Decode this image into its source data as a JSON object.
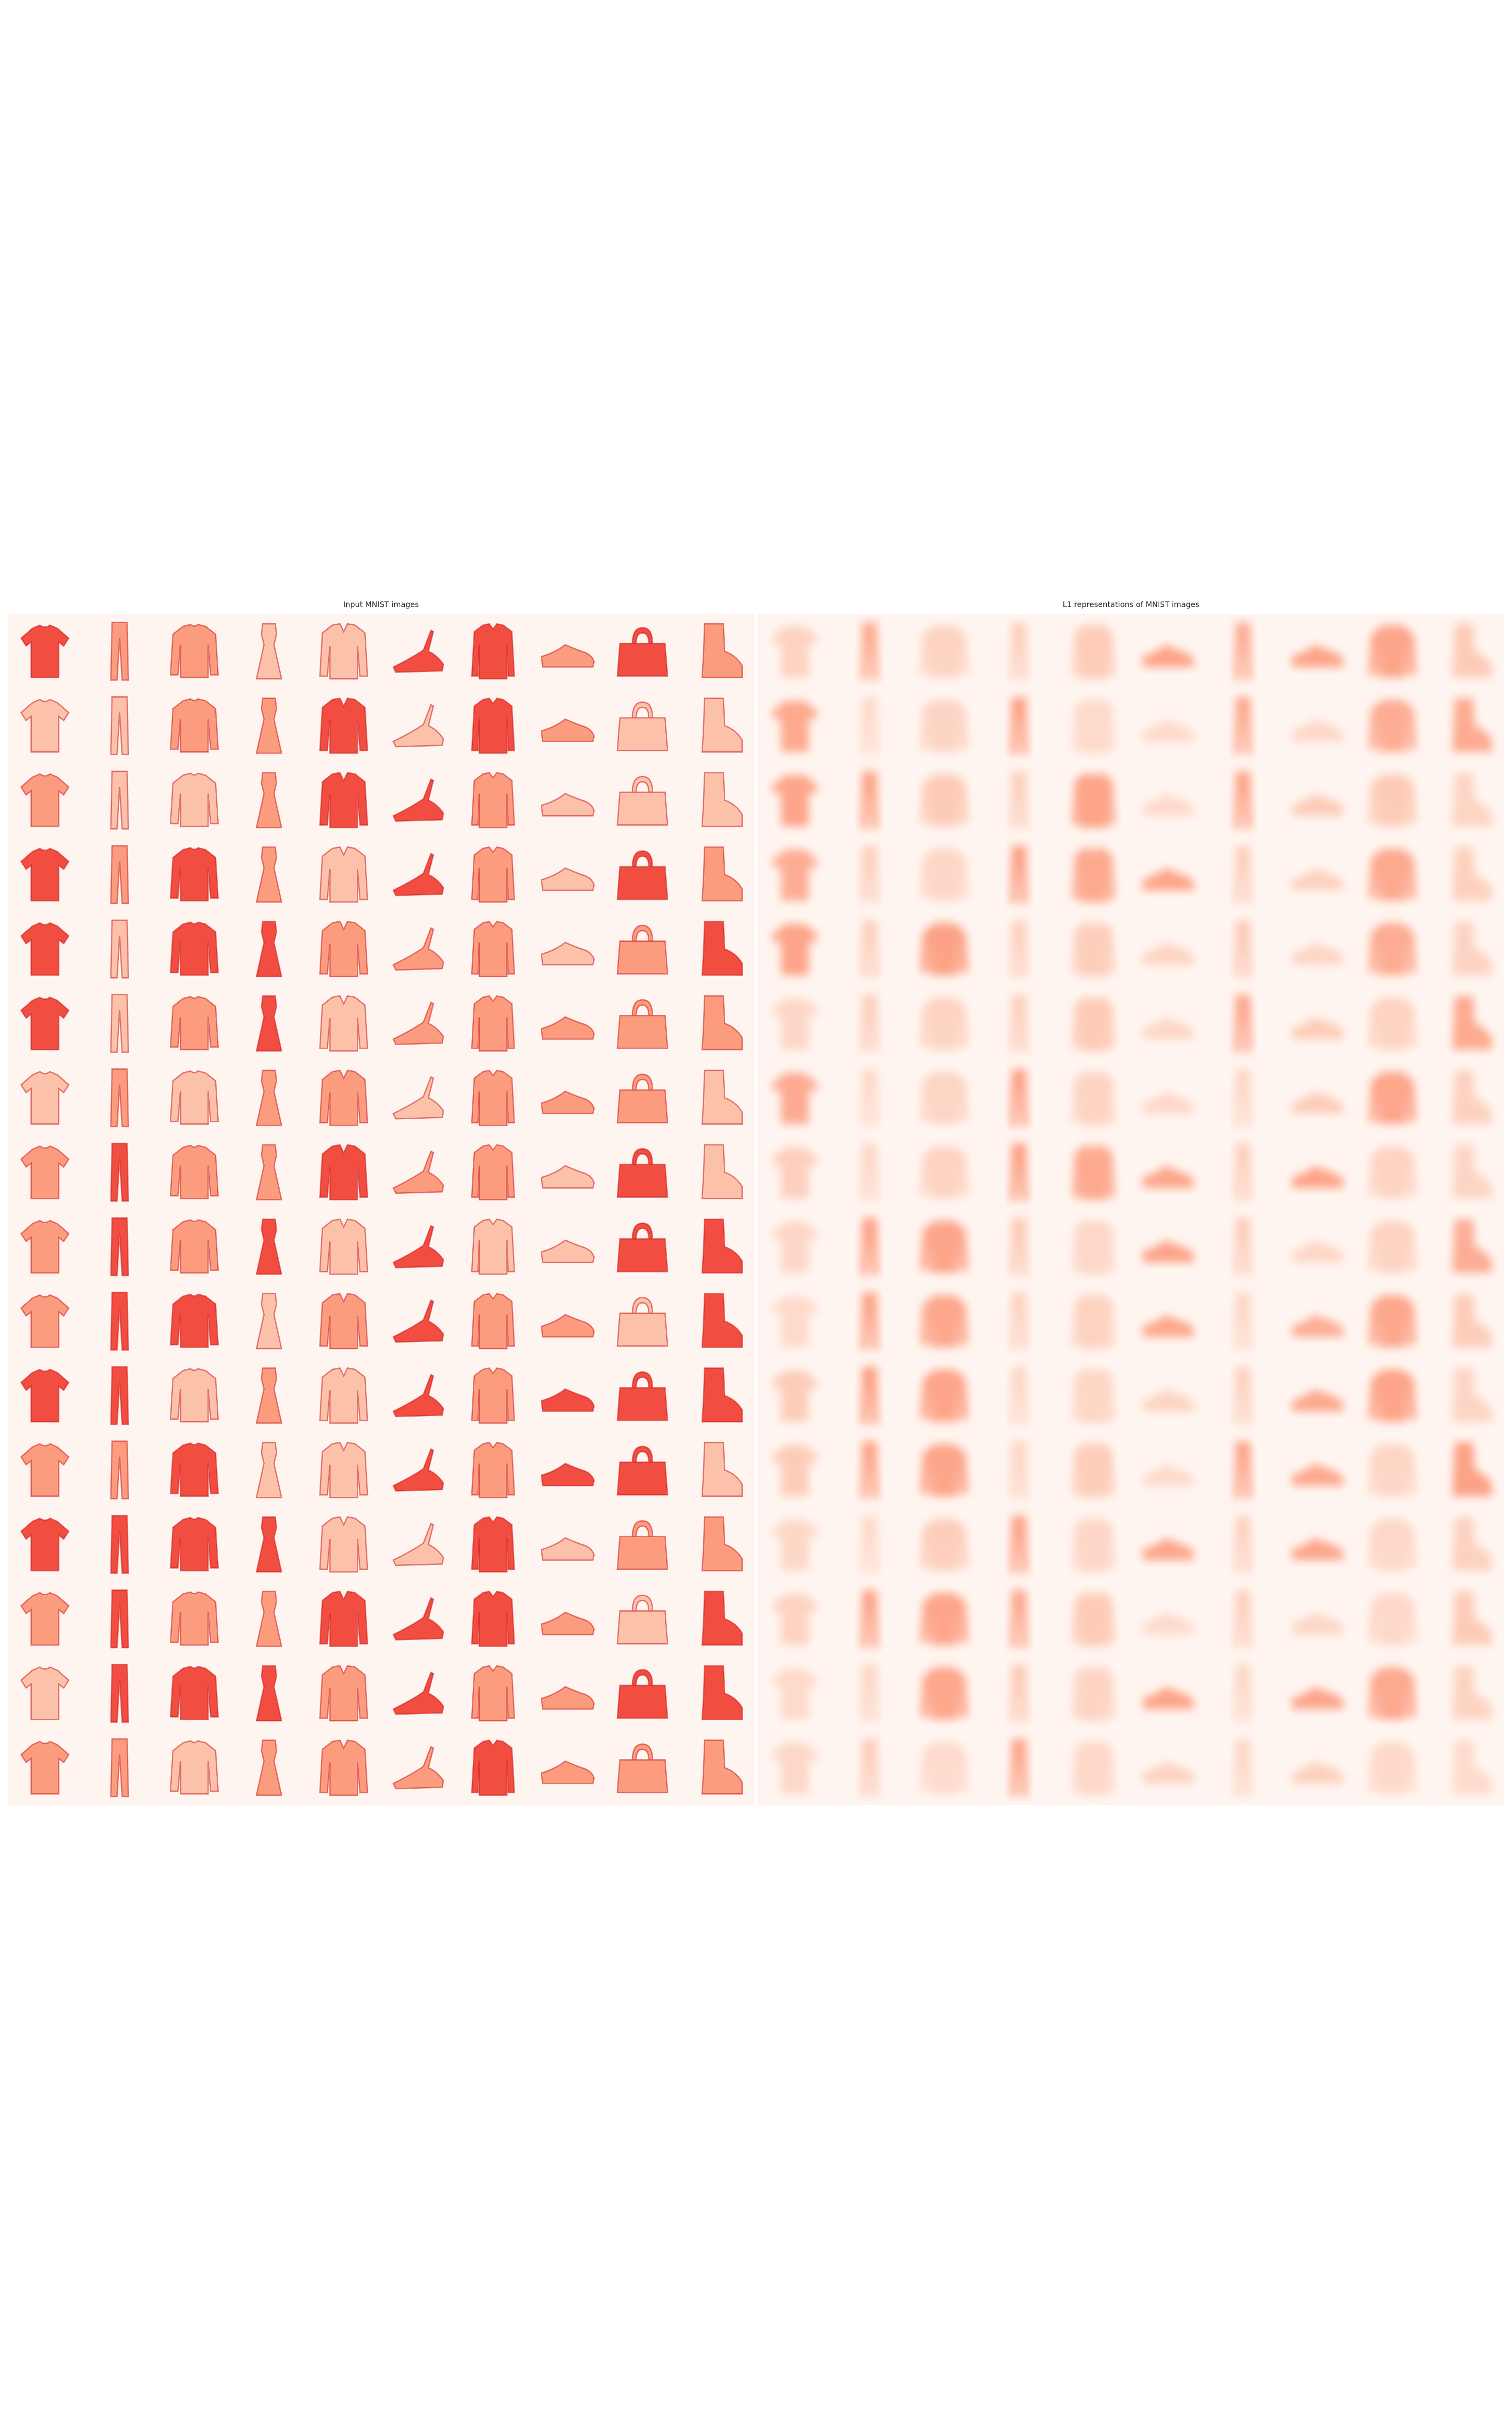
{
  "figure": {
    "panels": [
      {
        "id": "left",
        "title": "Input MNIST images",
        "style": "sharp"
      },
      {
        "id": "right",
        "title": "L1 representations of MNIST images",
        "style": "blurred"
      }
    ],
    "grid": {
      "rows": 16,
      "cols": 10
    },
    "columns": [
      "tshirt",
      "trouser",
      "pullover",
      "dress",
      "coat",
      "sandal",
      "shirt",
      "sneaker",
      "bag",
      "boot"
    ],
    "right_panel_columns": [
      "tshirt",
      "trouser",
      "pullover",
      "trouser",
      "shirt",
      "sneaker",
      "trouser",
      "sneaker",
      "pullover",
      "boot"
    ],
    "colors": {
      "background": "#fff5f0",
      "light": "#fcbba1",
      "mid": "#fc9272",
      "dark": "#ef3b2c",
      "darkest": "#cb181d"
    }
  }
}
